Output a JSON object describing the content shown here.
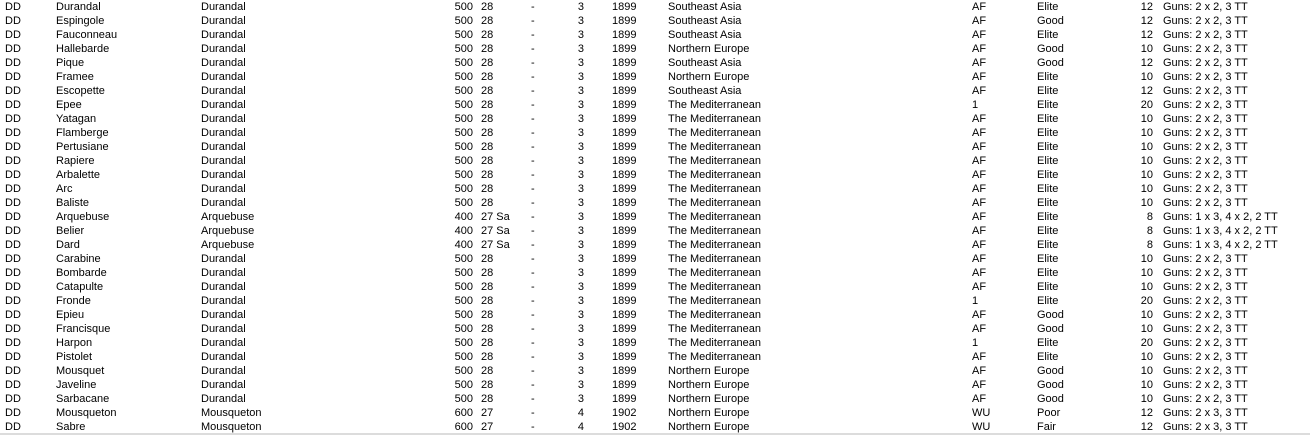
{
  "colors": {
    "background": "#ffffff",
    "text": "#000000",
    "bottom_divider": "#dcdcdc"
  },
  "ship_list": {
    "rows": [
      [
        "DD",
        "Durandal",
        "Durandal",
        "500",
        "28",
        "-",
        "3",
        "1899",
        "Southeast Asia",
        "AF",
        "Elite",
        "12",
        "Guns: 2 x 2, 3 TT"
      ],
      [
        "DD",
        "Espingole",
        "Durandal",
        "500",
        "28",
        "-",
        "3",
        "1899",
        "Southeast Asia",
        "AF",
        "Good",
        "12",
        "Guns: 2 x 2, 3 TT"
      ],
      [
        "DD",
        "Fauconneau",
        "Durandal",
        "500",
        "28",
        "-",
        "3",
        "1899",
        "Southeast Asia",
        "AF",
        "Elite",
        "12",
        "Guns: 2 x 2, 3 TT"
      ],
      [
        "DD",
        "Hallebarde",
        "Durandal",
        "500",
        "28",
        "-",
        "3",
        "1899",
        "Northern Europe",
        "AF",
        "Good",
        "10",
        "Guns: 2 x 2, 3 TT"
      ],
      [
        "DD",
        "Pique",
        "Durandal",
        "500",
        "28",
        "-",
        "3",
        "1899",
        "Southeast Asia",
        "AF",
        "Good",
        "12",
        "Guns: 2 x 2, 3 TT"
      ],
      [
        "DD",
        "Framee",
        "Durandal",
        "500",
        "28",
        "-",
        "3",
        "1899",
        "Northern Europe",
        "AF",
        "Elite",
        "10",
        "Guns: 2 x 2, 3 TT"
      ],
      [
        "DD",
        "Escopette",
        "Durandal",
        "500",
        "28",
        "-",
        "3",
        "1899",
        "Southeast Asia",
        "AF",
        "Elite",
        "12",
        "Guns: 2 x 2, 3 TT"
      ],
      [
        "DD",
        "Epee",
        "Durandal",
        "500",
        "28",
        "-",
        "3",
        "1899",
        "The Mediterranean",
        "1",
        "Elite",
        "20",
        "Guns: 2 x 2, 3 TT"
      ],
      [
        "DD",
        "Yatagan",
        "Durandal",
        "500",
        "28",
        "-",
        "3",
        "1899",
        "The Mediterranean",
        "AF",
        "Elite",
        "10",
        "Guns: 2 x 2, 3 TT"
      ],
      [
        "DD",
        "Flamberge",
        "Durandal",
        "500",
        "28",
        "-",
        "3",
        "1899",
        "The Mediterranean",
        "AF",
        "Elite",
        "10",
        "Guns: 2 x 2, 3 TT"
      ],
      [
        "DD",
        "Pertusiane",
        "Durandal",
        "500",
        "28",
        "-",
        "3",
        "1899",
        "The Mediterranean",
        "AF",
        "Elite",
        "10",
        "Guns: 2 x 2, 3 TT"
      ],
      [
        "DD",
        "Rapiere",
        "Durandal",
        "500",
        "28",
        "-",
        "3",
        "1899",
        "The Mediterranean",
        "AF",
        "Elite",
        "10",
        "Guns: 2 x 2, 3 TT"
      ],
      [
        "DD",
        "Arbalette",
        "Durandal",
        "500",
        "28",
        "-",
        "3",
        "1899",
        "The Mediterranean",
        "AF",
        "Elite",
        "10",
        "Guns: 2 x 2, 3 TT"
      ],
      [
        "DD",
        "Arc",
        "Durandal",
        "500",
        "28",
        "-",
        "3",
        "1899",
        "The Mediterranean",
        "AF",
        "Elite",
        "10",
        "Guns: 2 x 2, 3 TT"
      ],
      [
        "DD",
        "Baliste",
        "Durandal",
        "500",
        "28",
        "-",
        "3",
        "1899",
        "The Mediterranean",
        "AF",
        "Elite",
        "10",
        "Guns: 2 x 2, 3 TT"
      ],
      [
        "DD",
        "Arquebuse",
        "Arquebuse",
        "400",
        "27 Sa",
        "-",
        "3",
        "1899",
        "The Mediterranean",
        "AF",
        "Elite",
        "8",
        "Guns: 1 x 3, 4 x 2, 2 TT"
      ],
      [
        "DD",
        "Belier",
        "Arquebuse",
        "400",
        "27 Sa",
        "-",
        "3",
        "1899",
        "The Mediterranean",
        "AF",
        "Elite",
        "8",
        "Guns: 1 x 3, 4 x 2, 2 TT"
      ],
      [
        "DD",
        "Dard",
        "Arquebuse",
        "400",
        "27 Sa",
        "-",
        "3",
        "1899",
        "The Mediterranean",
        "AF",
        "Elite",
        "8",
        "Guns: 1 x 3, 4 x 2, 2 TT"
      ],
      [
        "DD",
        "Carabine",
        "Durandal",
        "500",
        "28",
        "-",
        "3",
        "1899",
        "The Mediterranean",
        "AF",
        "Elite",
        "10",
        "Guns: 2 x 2, 3 TT"
      ],
      [
        "DD",
        "Bombarde",
        "Durandal",
        "500",
        "28",
        "-",
        "3",
        "1899",
        "The Mediterranean",
        "AF",
        "Elite",
        "10",
        "Guns: 2 x 2, 3 TT"
      ],
      [
        "DD",
        "Catapulte",
        "Durandal",
        "500",
        "28",
        "-",
        "3",
        "1899",
        "The Mediterranean",
        "AF",
        "Elite",
        "10",
        "Guns: 2 x 2, 3 TT"
      ],
      [
        "DD",
        "Fronde",
        "Durandal",
        "500",
        "28",
        "-",
        "3",
        "1899",
        "The Mediterranean",
        "1",
        "Elite",
        "20",
        "Guns: 2 x 2, 3 TT"
      ],
      [
        "DD",
        "Epieu",
        "Durandal",
        "500",
        "28",
        "-",
        "3",
        "1899",
        "The Mediterranean",
        "AF",
        "Good",
        "10",
        "Guns: 2 x 2, 3 TT"
      ],
      [
        "DD",
        "Francisque",
        "Durandal",
        "500",
        "28",
        "-",
        "3",
        "1899",
        "The Mediterranean",
        "AF",
        "Good",
        "10",
        "Guns: 2 x 2, 3 TT"
      ],
      [
        "DD",
        "Harpon",
        "Durandal",
        "500",
        "28",
        "-",
        "3",
        "1899",
        "The Mediterranean",
        "1",
        "Elite",
        "20",
        "Guns: 2 x 2, 3 TT"
      ],
      [
        "DD",
        "Pistolet",
        "Durandal",
        "500",
        "28",
        "-",
        "3",
        "1899",
        "The Mediterranean",
        "AF",
        "Elite",
        "10",
        "Guns: 2 x 2, 3 TT"
      ],
      [
        "DD",
        "Mousquet",
        "Durandal",
        "500",
        "28",
        "-",
        "3",
        "1899",
        "Northern Europe",
        "AF",
        "Good",
        "10",
        "Guns: 2 x 2, 3 TT"
      ],
      [
        "DD",
        "Javeline",
        "Durandal",
        "500",
        "28",
        "-",
        "3",
        "1899",
        "Northern Europe",
        "AF",
        "Good",
        "10",
        "Guns: 2 x 2, 3 TT"
      ],
      [
        "DD",
        "Sarbacane",
        "Durandal",
        "500",
        "28",
        "-",
        "3",
        "1899",
        "Northern Europe",
        "AF",
        "Good",
        "10",
        "Guns: 2 x 2, 3 TT"
      ],
      [
        "DD",
        "Mousqueton",
        "Mousqueton",
        "600",
        "27",
        "-",
        "4",
        "1902",
        "Northern Europe",
        "WU",
        "Poor",
        "12",
        "Guns: 2 x 3, 3 TT"
      ],
      [
        "DD",
        "Sabre",
        "Mousqueton",
        "600",
        "27",
        "-",
        "4",
        "1902",
        "Northern Europe",
        "WU",
        "Fair",
        "12",
        "Guns: 2 x 3, 3 TT"
      ]
    ]
  }
}
